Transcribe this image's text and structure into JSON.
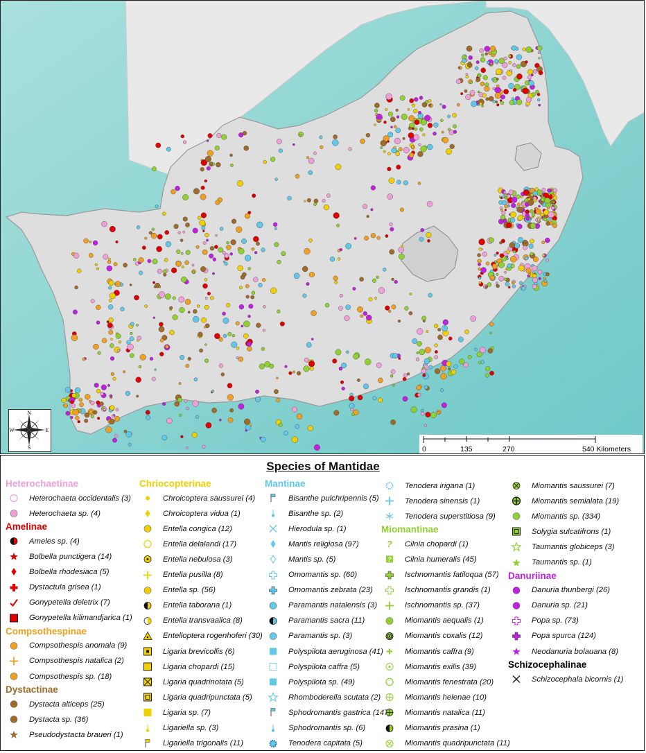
{
  "legend_title": "Species of Mantidae",
  "scale": {
    "labels": [
      "0",
      "135",
      "270",
      "540 Kilometers"
    ]
  },
  "compass": {
    "n": "N",
    "s": "S",
    "e": "E",
    "w": "W"
  },
  "colors": {
    "ocean": "#8fd6d4",
    "land": "#e4e4e4",
    "heterochaetinae": "#f0a0d8",
    "amelinae": "#e00000",
    "compsothespinae": "#f0a020",
    "dystactinae": "#a06a28",
    "chriocopterinae": "#f0d000",
    "mantinae": "#60c8e8",
    "miomantinae": "#90d030",
    "danuriinae": "#c020e0",
    "schizocephalinae": "#000000"
  },
  "groups": [
    {
      "key": "heterochaetinae",
      "title": "Heterochaetinae",
      "color": "#f0a0d8",
      "entries": [
        {
          "label": "Heterochaeta occidentalis (3)",
          "sym": "ring-pink"
        },
        {
          "label": "Heterochaeta sp. (4)",
          "sym": "dot-pink"
        }
      ]
    },
    {
      "key": "amelinae",
      "title": "Amelinae",
      "color": "#e00000",
      "entries": [
        {
          "label": "Ameles sp. (4)",
          "sym": "half-black-red"
        },
        {
          "label": "Bolbella punctigera (14)",
          "sym": "star-red"
        },
        {
          "label": "Bolbella rhodesiaca (5)",
          "sym": "diamond-red"
        },
        {
          "label": "Dystactula grisea (1)",
          "sym": "cross-red"
        },
        {
          "label": "Gonypetella deletrix (7)",
          "sym": "check-red"
        },
        {
          "label": "Gonypetella kilimandjarica (1)",
          "sym": "box-red"
        }
      ]
    },
    {
      "key": "compsothespinae",
      "title": "Compsothespinae",
      "color": "#f0a020",
      "entries": [
        {
          "label": "Compsothespis anomala (9)",
          "sym": "dot-orange"
        },
        {
          "label": "Compsothespis natalica (2)",
          "sym": "plus-circle-orange"
        },
        {
          "label": "Compsothespis sp. (18)",
          "sym": "dot-orange2"
        }
      ]
    },
    {
      "key": "dystactinae",
      "title": "Dystactinae",
      "color": "#a06a28",
      "entries": [
        {
          "label": "Dystacta  alticeps (25)",
          "sym": "dot-brown"
        },
        {
          "label": "Dystacta sp. (36)",
          "sym": "dot-brown2"
        },
        {
          "label": "Pseudodystacta braueri (1)",
          "sym": "star-brown"
        }
      ]
    },
    {
      "key": "chriocopterinae",
      "title": "Chriocopterinae",
      "color": "#f0d000",
      "entries": [
        {
          "label": "Chroicoptera saussurei (4)",
          "sym": "smalldot-yellow"
        },
        {
          "label": "Chroicoptera vidua (1)",
          "sym": "diamond-yellow"
        },
        {
          "label": "Entella  congica (12)",
          "sym": "dot-yellow"
        },
        {
          "label": "Entella  delalandi (17)",
          "sym": "ring-yellow"
        },
        {
          "label": "Entella  nebulosa (3)",
          "sym": "dotc-yellow"
        },
        {
          "label": "Entella  pusilla (8)",
          "sym": "plus-circle-yellow"
        },
        {
          "label": "Entella  sp. (56)",
          "sym": "dot-yellow"
        },
        {
          "label": "Entella  taborana (1)",
          "sym": "half-yellow"
        },
        {
          "label": "Entella  transvaalica (8)",
          "sym": "halfv-yellow"
        },
        {
          "label": "Entelloptera rogenhoferi (30)",
          "sym": "tri-yellow"
        },
        {
          "label": "Ligaria brevicollis (6)",
          "sym": "boxdot-yellow"
        },
        {
          "label": "Ligaria chopardi (15)",
          "sym": "box-yellow"
        },
        {
          "label": "Ligaria quadrinotata (5)",
          "sym": "boxx-yellow"
        },
        {
          "label": "Ligaria quadripunctata (5)",
          "sym": "boxbox-yellow"
        },
        {
          "label": "Ligaria sp. (7)",
          "sym": "boxfill-yellow"
        },
        {
          "label": "Ligariella  sp. (3)",
          "sym": "pin-yellow"
        },
        {
          "label": "Ligariella trigonalis (11)",
          "sym": "flag-yellow"
        }
      ]
    },
    {
      "key": "mantinae",
      "title": "Mantinae",
      "color": "#60c8e8",
      "entries": [
        {
          "label": "Bisanthe pulchripennis (5)",
          "sym": "flag-blue"
        },
        {
          "label": "Bisanthe sp. (2)",
          "sym": "pin-blue"
        },
        {
          "label": "Hierodula sp. (1)",
          "sym": "x-blue"
        },
        {
          "label": "Mantis religiosa (97)",
          "sym": "diamond-blue"
        },
        {
          "label": "Mantis sp. (5)",
          "sym": "diamondo-blue"
        },
        {
          "label": "Omomantis sp. (60)",
          "sym": "pluso-blue"
        },
        {
          "label": "Omomantis zebrata (23)",
          "sym": "plusfill-blue"
        },
        {
          "label": "Paramantis natalensis (3)",
          "sym": "dot-blue"
        },
        {
          "label": "Paramantis sacra (11)",
          "sym": "half-blue"
        },
        {
          "label": "Paramantis sp. (3)",
          "sym": "dot-blue2"
        },
        {
          "label": "Polyspilota aeruginosa (41)",
          "sym": "square-blue"
        },
        {
          "label": "Polyspilota caffra (5)",
          "sym": "squareo-blue"
        },
        {
          "label": "Polyspilota sp. (49)",
          "sym": "square-blue2"
        },
        {
          "label": "Rhomboderella scutata (2)",
          "sym": "staro-blue"
        },
        {
          "label": "Sphodromantis gastrica (147)",
          "sym": "flag-blue2"
        },
        {
          "label": "Sphodromantis sp. (6)",
          "sym": "pin-blue2"
        },
        {
          "label": "Tenodera capitata (5)",
          "sym": "gear-blue"
        }
      ]
    },
    {
      "key": "mantinae2",
      "title": "",
      "color": "#60c8e8",
      "entries": [
        {
          "label": "Tenodera irigana (1)",
          "sym": "gearo-blue"
        },
        {
          "label": "Tenodera sinensis (1)",
          "sym": "plus-blue"
        },
        {
          "label": "Tenodera superstitiosa (9)",
          "sym": "asterisk-blue"
        }
      ]
    },
    {
      "key": "miomantinae",
      "title": "Miomantinae",
      "color": "#90d030",
      "entries": [
        {
          "label": "Cilnia chopardi (1)",
          "sym": "q-green"
        },
        {
          "label": "Cilnia humeralis (45)",
          "sym": "qbox-green"
        },
        {
          "label": "Ischnomantis  fatiloqua (57)",
          "sym": "plusfill-green"
        },
        {
          "label": "Ischnomantis  grandis (1)",
          "sym": "pluso-green"
        },
        {
          "label": "Ischnomantis  sp. (37)",
          "sym": "plus-green"
        },
        {
          "label": "Miomantis aequalis (1)",
          "sym": "dot-green"
        },
        {
          "label": "Miomantis coxalis (12)",
          "sym": "target-green"
        },
        {
          "label": "Miomantis caffra (9)",
          "sym": "smallplus-green"
        },
        {
          "label": "Miomantis exilis (39)",
          "sym": "dotring-green"
        },
        {
          "label": "Miomantis fenestrata (20)",
          "sym": "ring-green"
        },
        {
          "label": "Miomantis helenae (10)",
          "sym": "pluscircle-green"
        },
        {
          "label": "Miomantis natalica (11)",
          "sym": "pluscircle2-green"
        },
        {
          "label": "Miomantis prasina (1)",
          "sym": "half-green"
        },
        {
          "label": "Miomantis quadripunctata (11)",
          "sym": "xcircle-green"
        }
      ]
    },
    {
      "key": "miomantinae2",
      "title": "",
      "color": "#90d030",
      "entries": [
        {
          "label": "Miomantis saussurei (7)",
          "sym": "xcircle2-green"
        },
        {
          "label": "Miomantis semialata (19)",
          "sym": "plusblack-green"
        },
        {
          "label": "Miomantis sp. (334)",
          "sym": "dot-green2"
        },
        {
          "label": "Solygia  sulcatifrons (1)",
          "sym": "boxbox-green"
        },
        {
          "label": "Taumantis globiceps (3)",
          "sym": "staro-green"
        },
        {
          "label": "Taumantis sp. (1)",
          "sym": "star-green"
        }
      ]
    },
    {
      "key": "danuriinae",
      "title": "Danuriinae",
      "color": "#c020e0",
      "entries": [
        {
          "label": "Danuria thunbergi (26)",
          "sym": "dot-purple"
        },
        {
          "label": "Danuria sp. (21)",
          "sym": "dot-purple2"
        },
        {
          "label": "Popa sp. (73)",
          "sym": "pluso-purple"
        },
        {
          "label": "Popa spurca (124)",
          "sym": "plusfill-purple"
        },
        {
          "label": "Neodanuria bolauana (8)",
          "sym": "star-purple"
        }
      ]
    },
    {
      "key": "schizocephalinae",
      "title": "Schizocephalinae",
      "color": "#000000",
      "entries": [
        {
          "label": "Schizocephala bicornis (1)",
          "sym": "x-black"
        }
      ]
    }
  ]
}
